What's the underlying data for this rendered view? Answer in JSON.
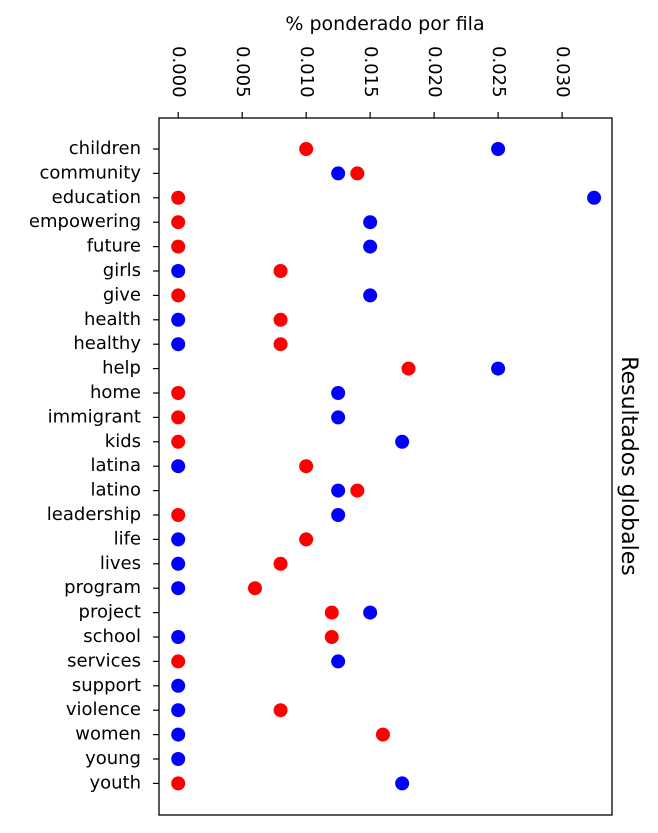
{
  "chart_data": {
    "type": "scatter",
    "xlabel": "% ponderado por fila",
    "side_title": "Resultados globales",
    "xlim": [
      -0.0015,
      0.0339
    ],
    "xticks": [
      0.0,
      0.005,
      0.01,
      0.015,
      0.02,
      0.025,
      0.03
    ],
    "xtick_labels": [
      "0.000",
      "0.005",
      "0.010",
      "0.015",
      "0.020",
      "0.025",
      "0.030"
    ],
    "categories": [
      "children",
      "community",
      "education",
      "empowering",
      "future",
      "girls",
      "give",
      "health",
      "healthy",
      "help",
      "home",
      "immigrant",
      "kids",
      "latina",
      "latino",
      "leadership",
      "life",
      "lives",
      "program",
      "project",
      "school",
      "services",
      "support",
      "violence",
      "women",
      "young",
      "youth"
    ],
    "series": [
      {
        "color": "#0000ff",
        "values": [
          0.025,
          0.0125,
          0.0325,
          0.015,
          0.015,
          0.0,
          0.015,
          0.0,
          0.0,
          0.025,
          0.0125,
          0.0125,
          0.0175,
          0.0,
          0.0125,
          0.0125,
          0.0,
          0.0,
          0.0,
          0.015,
          0.0,
          0.0125,
          0.0,
          0.0,
          0.0,
          0.0,
          0.0175
        ]
      },
      {
        "color": "#ff0000",
        "values": [
          0.01,
          0.014,
          0.0,
          0.0,
          0.0,
          0.008,
          0.0,
          0.008,
          0.008,
          0.018,
          0.0,
          0.0,
          0.0,
          0.01,
          0.014,
          0.0,
          0.01,
          0.008,
          0.006,
          0.012,
          0.012,
          0.0,
          null,
          0.008,
          0.016,
          null,
          0.0
        ]
      }
    ]
  }
}
